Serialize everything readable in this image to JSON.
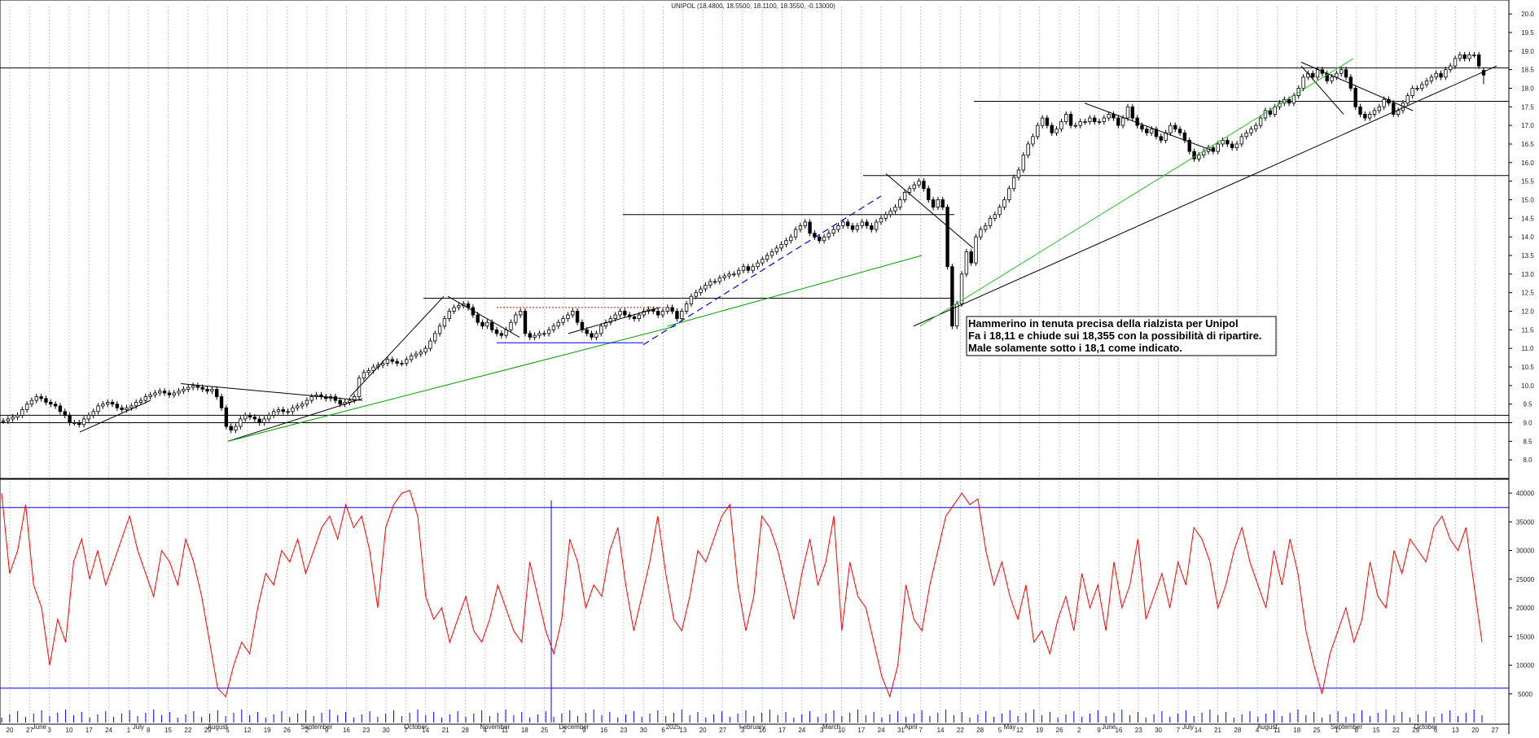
{
  "header": {
    "title": "UNIPOL (18.4800, 18.5500, 18.1100, 18.3550, -0.13000)"
  },
  "annotation": {
    "lines": [
      "Hammerino in tenuta precisa della rialzista per Unipol",
      "Fa i 18,11 e chiude sui 18,355 con la possibilità di ripartire.",
      "Male solamente sotto i 18,1 come indicato."
    ]
  },
  "colors": {
    "candle": "#000000",
    "up_candle_fill": "#ffffff",
    "oscillator": "#ff0000",
    "bands": "#0000ff",
    "trend_green": "#00a000",
    "trend_blue_dashed": "#0000ff",
    "box_red_dotted": "#ff0000",
    "grid": "#c8c8c8"
  },
  "chart_data": [
    {
      "type": "candlestick",
      "title": "UNIPOL (18.4800, 18.5500, 18.1100, 18.3550, -0.13000)",
      "last_bar": {
        "open": 18.48,
        "high": 18.55,
        "low": 18.11,
        "close": 18.355,
        "change": -0.13
      },
      "ylim": [
        7.5,
        20.2
      ],
      "y_ticks": [
        "8.0",
        "8.5",
        "9.0",
        "9.5",
        "10.0",
        "10.5",
        "11.0",
        "11.5",
        "12.0",
        "12.5",
        "13.0",
        "13.5",
        "14.0",
        "14.5",
        "15.0",
        "15.5",
        "16.0",
        "16.5",
        "17.0",
        "17.5",
        "18.0",
        "18.5",
        "19.0",
        "19.5",
        "20.0"
      ],
      "x_date_ticks": [
        "20",
        "27",
        "3",
        "10",
        "17",
        "24",
        "1",
        "8",
        "15",
        "22",
        "29",
        "5",
        "12",
        "19",
        "26",
        "2",
        "9",
        "16",
        "23",
        "30",
        "7",
        "14",
        "21",
        "28",
        "4",
        "11",
        "18",
        "25",
        "2",
        "9",
        "16",
        "23",
        "30",
        "6",
        "13",
        "20",
        "27",
        "3",
        "10",
        "17",
        "24",
        "3",
        "10",
        "17",
        "24",
        "31",
        "7",
        "14",
        "22",
        "28",
        "5",
        "12",
        "19",
        "26",
        "2",
        "9",
        "16",
        "23",
        "30",
        "7",
        "14",
        "21",
        "28",
        "4",
        "11",
        "18",
        "25",
        "1",
        "8",
        "15",
        "22",
        "29",
        "6",
        "13",
        "20",
        "27"
      ],
      "x_months": [
        "June",
        "July",
        "August",
        "September",
        "October",
        "November",
        "December",
        "2025",
        "February",
        "March",
        "April",
        "May",
        "June",
        "July",
        "August",
        "September",
        "October"
      ],
      "closes_approx": [
        9.05,
        9.1,
        9.15,
        9.2,
        9.35,
        9.5,
        9.6,
        9.7,
        9.65,
        9.55,
        9.5,
        9.45,
        9.3,
        9.2,
        9.0,
        9.0,
        8.95,
        9.1,
        9.2,
        9.3,
        9.45,
        9.5,
        9.55,
        9.5,
        9.4,
        9.35,
        9.4,
        9.45,
        9.55,
        9.6,
        9.7,
        9.75,
        9.8,
        9.85,
        9.8,
        9.75,
        9.8,
        9.85,
        9.9,
        9.95,
        10.0,
        9.95,
        9.9,
        9.85,
        9.9,
        9.7,
        9.4,
        8.9,
        8.8,
        8.9,
        9.1,
        9.2,
        9.15,
        9.1,
        9.0,
        9.1,
        9.2,
        9.3,
        9.35,
        9.3,
        9.3,
        9.4,
        9.45,
        9.5,
        9.6,
        9.7,
        9.75,
        9.7,
        9.65,
        9.7,
        9.6,
        9.5,
        9.55,
        9.6,
        9.7,
        10.2,
        10.35,
        10.4,
        10.5,
        10.55,
        10.6,
        10.7,
        10.65,
        10.6,
        10.6,
        10.7,
        10.8,
        10.85,
        10.9,
        11.0,
        11.2,
        11.4,
        11.6,
        11.8,
        12.0,
        12.1,
        12.15,
        12.2,
        12.1,
        11.9,
        11.7,
        11.6,
        11.7,
        11.5,
        11.4,
        11.35,
        11.5,
        11.7,
        11.9,
        12.0,
        11.4,
        11.3,
        11.35,
        11.4,
        11.4,
        11.5,
        11.6,
        11.7,
        11.8,
        11.9,
        12.0,
        11.7,
        11.5,
        11.4,
        11.3,
        11.4,
        11.6,
        11.7,
        11.8,
        11.9,
        12.0,
        11.9,
        11.85,
        11.8,
        11.9,
        12.0,
        12.05,
        12.0,
        11.9,
        12.0,
        12.1,
        12.0,
        11.8,
        12.0,
        12.2,
        12.4,
        12.5,
        12.6,
        12.7,
        12.8,
        12.8,
        12.9,
        12.95,
        13.0,
        13.0,
        13.1,
        13.2,
        13.1,
        13.2,
        13.3,
        13.4,
        13.5,
        13.6,
        13.7,
        13.8,
        13.9,
        14.0,
        14.2,
        14.3,
        14.4,
        14.1,
        14.0,
        13.9,
        14.0,
        14.1,
        14.2,
        14.3,
        14.4,
        14.3,
        14.2,
        14.3,
        14.4,
        14.3,
        14.2,
        14.4,
        14.5,
        14.6,
        14.7,
        14.8,
        15.0,
        15.2,
        15.3,
        15.4,
        15.5,
        15.3,
        15.0,
        14.8,
        15.0,
        14.8,
        13.2,
        11.6,
        12.2,
        13.0,
        13.6,
        13.3,
        14.0,
        14.2,
        14.3,
        14.5,
        14.6,
        14.8,
        15.0,
        15.3,
        15.6,
        15.8,
        16.2,
        16.5,
        16.7,
        17.0,
        17.2,
        17.0,
        16.8,
        16.9,
        17.1,
        17.3,
        17.0,
        17.0,
        17.1,
        17.1,
        17.2,
        17.1,
        17.1,
        17.2,
        17.3,
        17.2,
        17.0,
        17.2,
        17.5,
        17.2,
        17.0,
        16.9,
        16.8,
        16.9,
        16.7,
        16.6,
        16.8,
        17.0,
        16.9,
        16.8,
        16.6,
        16.3,
        16.1,
        16.2,
        16.3,
        16.4,
        16.3,
        16.5,
        16.6,
        16.5,
        16.4,
        16.5,
        16.7,
        16.8,
        16.9,
        17.0,
        17.2,
        17.4,
        17.3,
        17.5,
        17.6,
        17.7,
        17.6,
        17.8,
        18.0,
        18.3,
        18.4,
        18.3,
        18.5,
        18.4,
        18.2,
        18.3,
        18.4,
        18.5,
        18.3,
        18.0,
        17.5,
        17.3,
        17.2,
        17.3,
        17.4,
        17.5,
        17.7,
        17.6,
        17.3,
        17.4,
        17.6,
        17.8,
        18.0,
        18.0,
        18.1,
        18.2,
        18.3,
        18.4,
        18.3,
        18.5,
        18.6,
        18.8,
        18.9,
        18.8,
        18.9,
        18.9,
        18.6,
        18.355
      ],
      "horizontal_levels": [
        9.0,
        9.2,
        12.35,
        14.6,
        15.65,
        17.65,
        18.55
      ]
    },
    {
      "type": "line",
      "series": [
        {
          "values": [
            40000,
            26000,
            30000,
            38000,
            24000,
            20000,
            10000,
            18000,
            14000,
            28000,
            32000,
            25000,
            30000,
            24000,
            28000,
            32000,
            36000,
            30000,
            26000,
            22000,
            30000,
            28000,
            24000,
            32000,
            28000,
            22000,
            14000,
            6000,
            4500,
            10000,
            14000,
            12000,
            20000,
            26000,
            24000,
            30000,
            28000,
            32000,
            26000,
            30000,
            34000,
            36000,
            32000,
            38000,
            34000,
            36000,
            30000,
            20000,
            34000,
            38000,
            40000,
            40500,
            36000,
            22000,
            18000,
            20000,
            14000,
            18000,
            22000,
            16000,
            14000,
            18000,
            24000,
            20000,
            16000,
            14000,
            28000,
            22000,
            16000,
            12000,
            18000,
            32000,
            28000,
            20000,
            24000,
            22000,
            30000,
            34000,
            24000,
            16000,
            22000,
            28000,
            36000,
            26000,
            18000,
            16000,
            22000,
            30000,
            28000,
            32000,
            36000,
            38000,
            24000,
            16000,
            22000,
            36000,
            34000,
            30000,
            24000,
            18000,
            26000,
            32000,
            24000,
            28000,
            36000,
            16000,
            28000,
            22000,
            20000,
            14000,
            8000,
            4500,
            10000,
            24000,
            18000,
            16000,
            24000,
            30000,
            36000,
            38000,
            40000,
            38000,
            39000,
            30000,
            24000,
            28000,
            22000,
            18000,
            24000,
            14000,
            16000,
            12000,
            18000,
            22000,
            16000,
            26000,
            20000,
            24000,
            16000,
            28000,
            20000,
            24000,
            32000,
            18000,
            22000,
            26000,
            20000,
            28000,
            24000,
            34000,
            32000,
            28000,
            20000,
            24000,
            30000,
            34000,
            28000,
            24000,
            20000,
            30000,
            24000,
            32000,
            26000,
            16000,
            10000,
            5000,
            12000,
            16000,
            20000,
            14000,
            18000,
            28000,
            22000,
            20000,
            30000,
            26000,
            32000,
            30000,
            28000,
            34000,
            36000,
            32000,
            30000,
            34000,
            24000,
            14000
          ]
        }
      ],
      "ylim": [
        0,
        42000
      ],
      "y_ticks": [
        "5000",
        "10000",
        "15000",
        "20000",
        "25000",
        "30000",
        "35000",
        "40000"
      ],
      "band_levels": [
        6000,
        37500
      ]
    }
  ]
}
